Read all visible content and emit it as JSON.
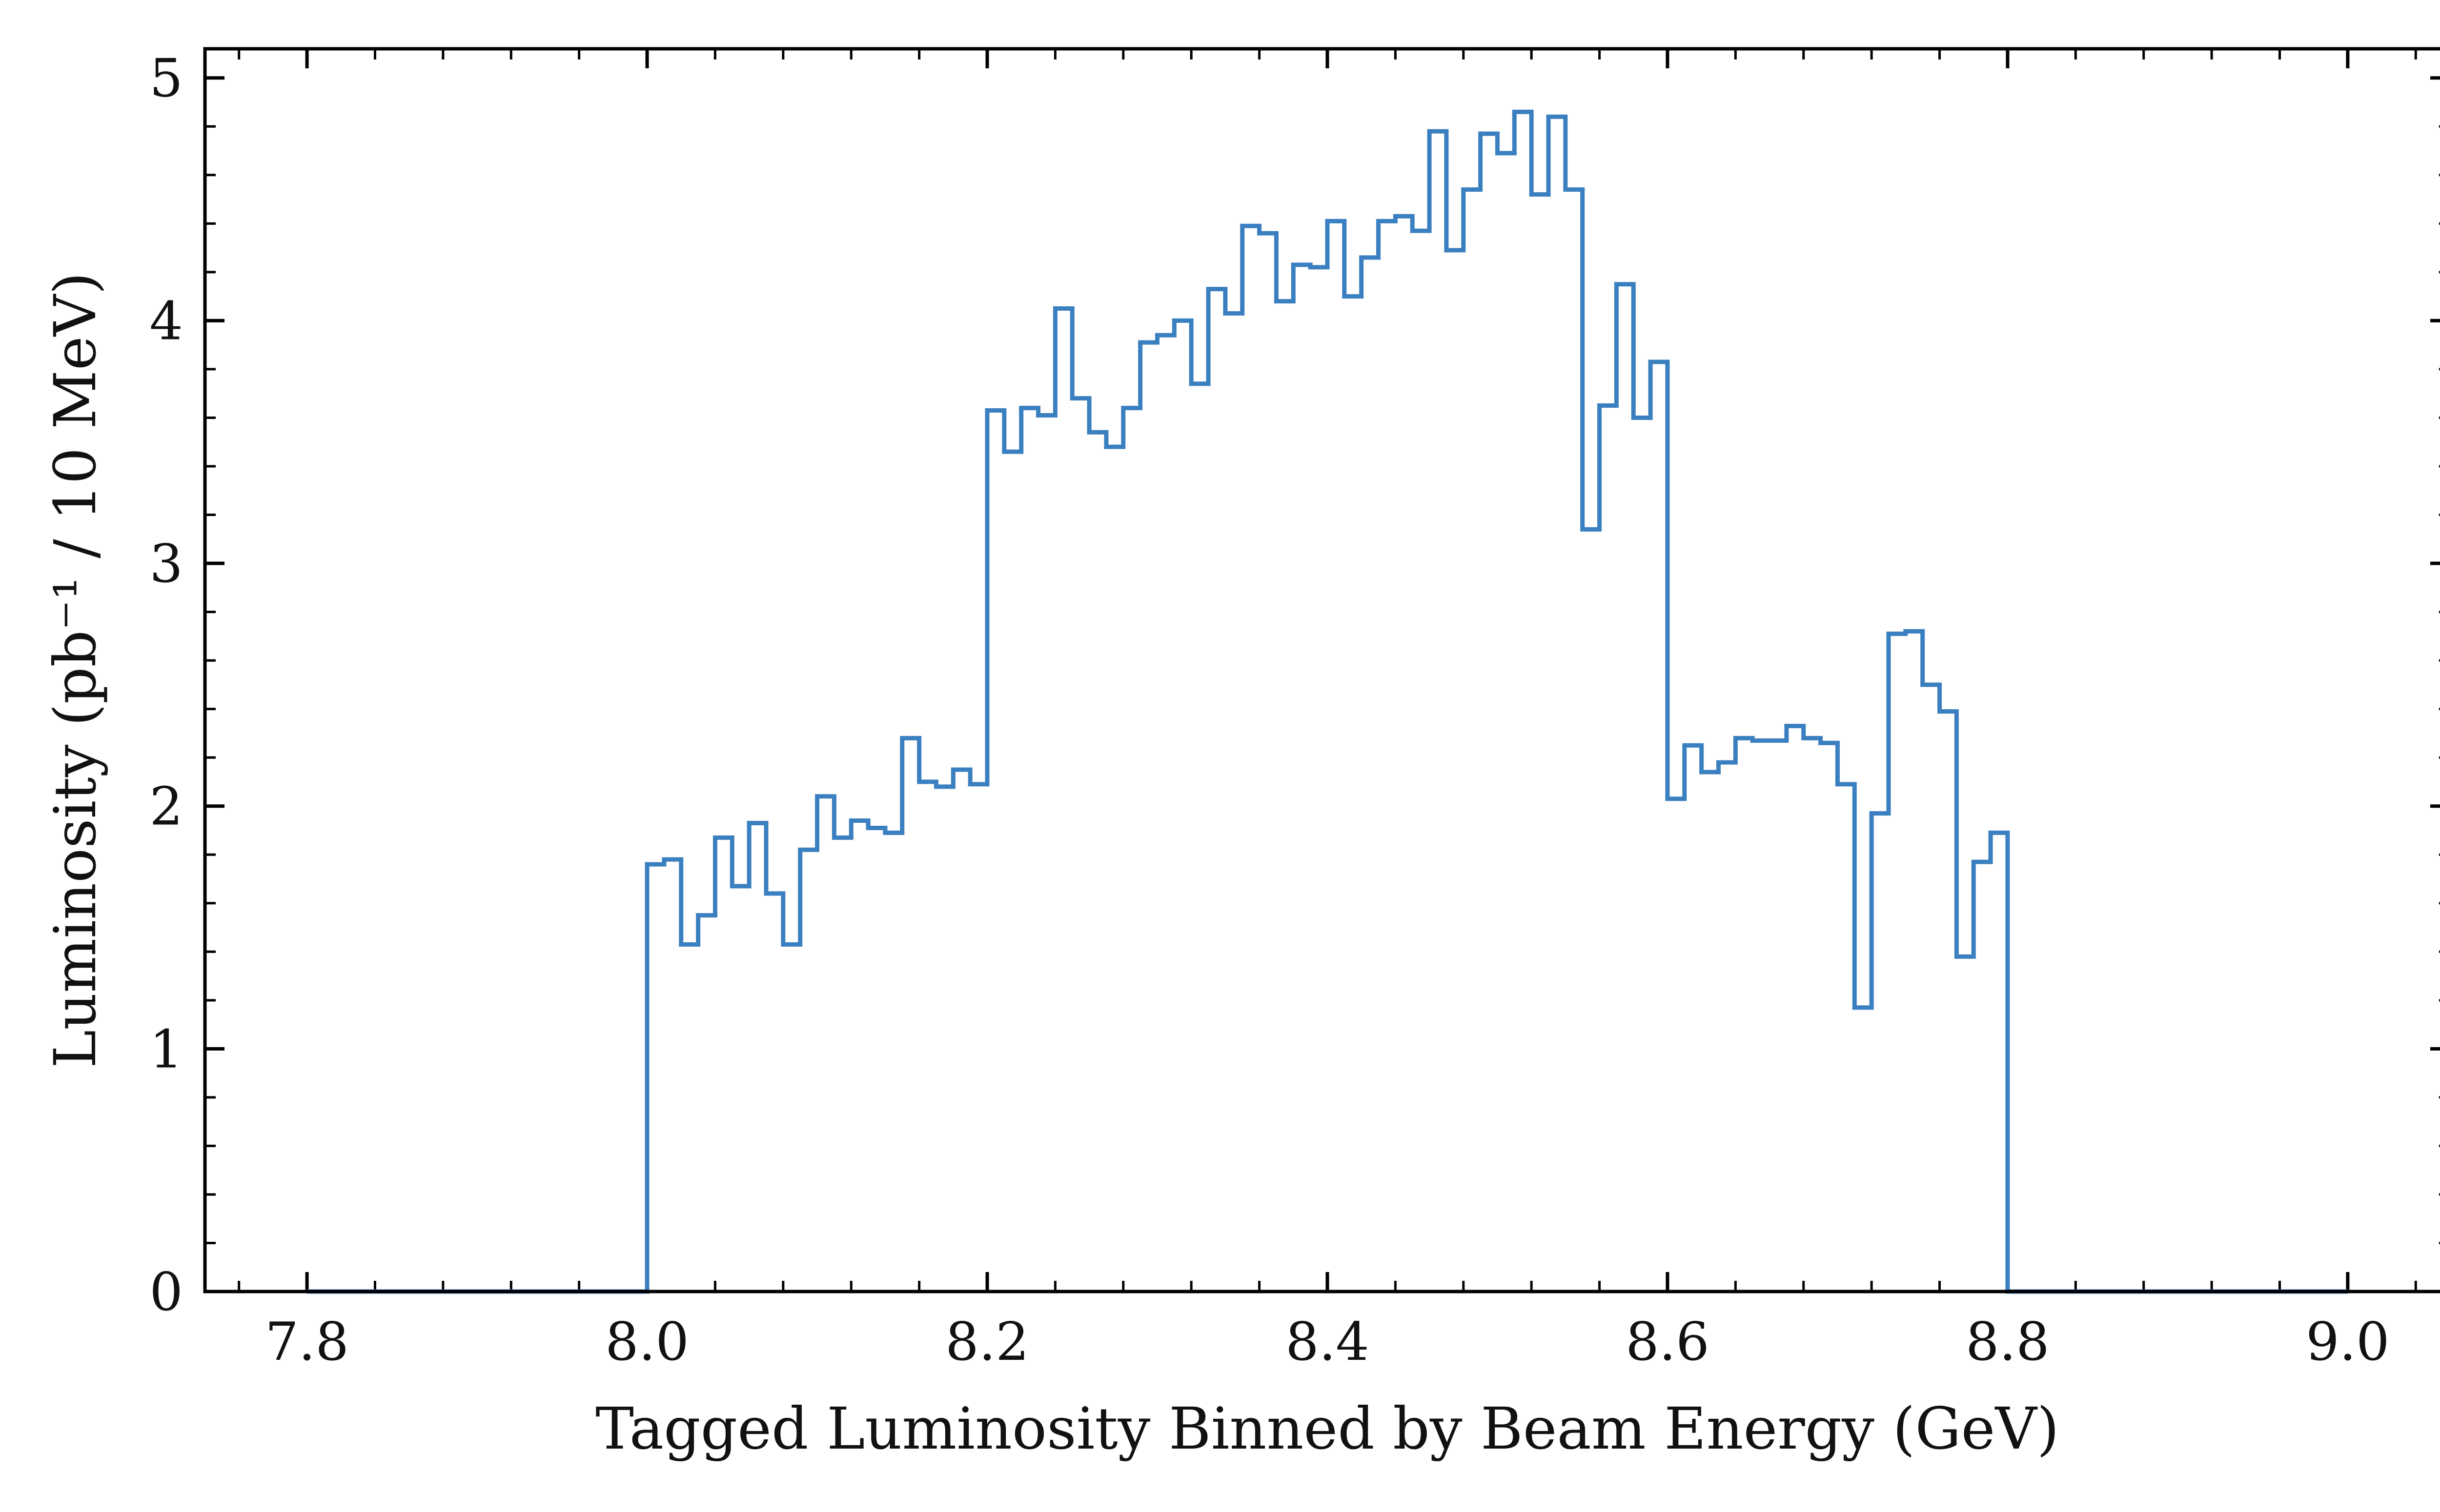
{
  "chart_data": {
    "type": "line",
    "style": "step-histogram",
    "xlabel": "Tagged Luminosity Binned by Beam Energy (GeV)",
    "ylabel": "Luminosity (pb⁻¹ / 10 MeV)",
    "xlim": [
      7.74,
      9.06
    ],
    "ylim": [
      0,
      5.12
    ],
    "x_ticks": [
      7.8,
      8.0,
      8.2,
      8.4,
      8.6,
      8.8,
      9.0
    ],
    "x_tick_labels": [
      "7.8",
      "8.0",
      "8.2",
      "8.4",
      "8.6",
      "8.8",
      "9.0"
    ],
    "y_ticks": [
      0,
      1,
      2,
      3,
      4,
      5
    ],
    "y_tick_labels": [
      "0",
      "1",
      "2",
      "3",
      "4",
      "5"
    ],
    "grid": false,
    "line_color": "#3a7fbf",
    "bin_width": 0.01,
    "series": [
      {
        "x_start": 8.0,
        "x_end": 8.8,
        "values": [
          1.76,
          1.78,
          1.43,
          1.55,
          1.87,
          1.67,
          1.93,
          1.64,
          1.43,
          1.82,
          2.04,
          1.87,
          1.94,
          1.91,
          1.89,
          2.28,
          2.1,
          2.08,
          2.15,
          2.09,
          3.63,
          3.46,
          3.64,
          3.61,
          4.05,
          3.68,
          3.54,
          3.48,
          3.64,
          3.91,
          3.94,
          4.0,
          3.74,
          4.13,
          4.03,
          4.39,
          4.36,
          4.08,
          4.23,
          4.22,
          4.41,
          4.1,
          4.26,
          4.41,
          4.43,
          4.37,
          4.78,
          4.29,
          4.54,
          4.77,
          4.69,
          4.86,
          4.52,
          4.84,
          4.54,
          3.14,
          3.65,
          4.15,
          3.6,
          3.83,
          2.03,
          2.25,
          2.14,
          2.18,
          2.28,
          2.27,
          2.27,
          2.33,
          2.28,
          2.26,
          2.09,
          1.17,
          1.97,
          2.71,
          2.72,
          2.5,
          2.39,
          1.38,
          1.77,
          1.89
        ]
      }
    ]
  }
}
